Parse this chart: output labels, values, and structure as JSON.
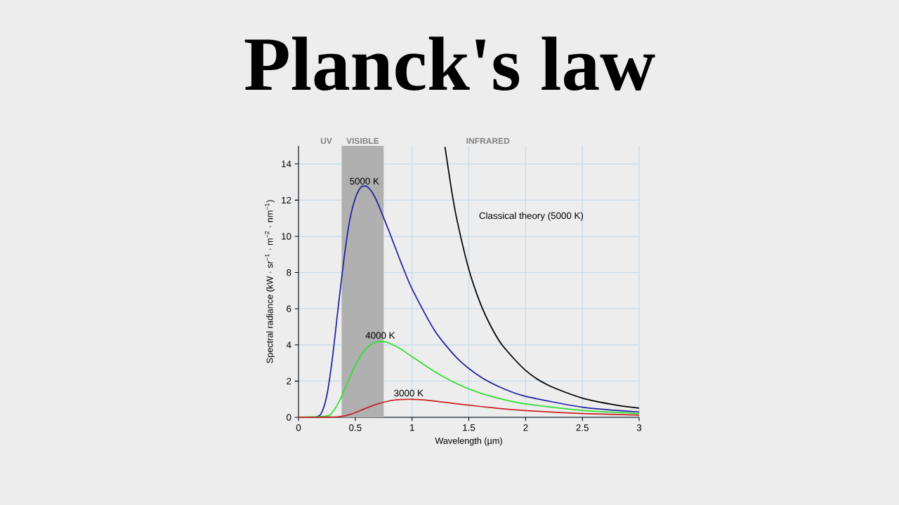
{
  "chart_data": {
    "type": "line",
    "title": "Planck's law",
    "xlabel": "Wavelength (µm)",
    "ylabel": "Spectral radiance (kW · sr$^{−1}$ · m$^{−2}$ · nm$^{−1}$)",
    "xlim": [
      0,
      3
    ],
    "ylim": [
      0,
      15
    ],
    "xticks": [
      0,
      0.5,
      1,
      1.5,
      2,
      2.5,
      3
    ],
    "yticks": [
      0,
      2,
      4,
      6,
      8,
      10,
      12,
      14
    ],
    "grid": true,
    "bands": [
      {
        "axis": "x",
        "from": 0.38,
        "to": 0.75,
        "label": "VISIBLE",
        "color": "#b0b0b0"
      }
    ],
    "annotations": [
      {
        "text": "5000 K",
        "x": 0.58,
        "y": 12.7
      },
      {
        "text": "4000 K",
        "x": 0.72,
        "y": 4.18
      },
      {
        "text": "3000 K",
        "x": 0.97,
        "y": 0.99
      },
      "UV",
      "INFRARED",
      "Classical theory (5000 K)"
    ],
    "series": [
      {
        "color": "#1f1f9e",
        "x": [
          0,
          0.1,
          0.15,
          0.2,
          0.25,
          0.3,
          0.35,
          0.4,
          0.45,
          0.5,
          0.55,
          0.6,
          0.65,
          0.7,
          0.8,
          0.9,
          1.0,
          1.2,
          1.4,
          1.6,
          1.8,
          2.0,
          2.5,
          3.0
        ],
        "values": [
          0,
          0,
          0.01,
          0.21,
          1.22,
          3.34,
          6.1,
          8.73,
          10.85,
          12.1,
          12.72,
          12.76,
          12.42,
          11.8,
          10.24,
          8.6,
          7.1,
          4.79,
          3.25,
          2.25,
          1.6,
          1.16,
          0.56,
          0.3
        ]
      },
      {
        "color": "#2ee02e",
        "x": [
          0,
          0.25,
          0.3,
          0.35,
          0.4,
          0.45,
          0.5,
          0.55,
          0.6,
          0.65,
          0.7,
          0.75,
          0.8,
          0.9,
          1.0,
          1.2,
          1.4,
          1.6,
          1.8,
          2.0,
          2.5,
          3.0
        ],
        "values": [
          0,
          0.07,
          0.3,
          0.78,
          1.45,
          2.19,
          2.87,
          3.43,
          3.83,
          4.07,
          4.18,
          4.18,
          4.1,
          3.78,
          3.35,
          2.52,
          1.84,
          1.34,
          0.99,
          0.74,
          0.38,
          0.21
        ]
      },
      {
        "color": "#c82020",
        "x": [
          0,
          0.3,
          0.35,
          0.4,
          0.45,
          0.5,
          0.6,
          0.7,
          0.8,
          0.9,
          1.0,
          1.1,
          1.2,
          1.4,
          1.6,
          1.8,
          2.0,
          2.5,
          3.0
        ],
        "values": [
          0,
          0.01,
          0.03,
          0.07,
          0.15,
          0.26,
          0.52,
          0.75,
          0.91,
          0.98,
          0.99,
          0.96,
          0.9,
          0.74,
          0.6,
          0.47,
          0.37,
          0.21,
          0.12
        ]
      },
      {
        "color": "#000000",
        "x": [
          1.29,
          1.35,
          1.4,
          1.5,
          1.6,
          1.7,
          1.8,
          2.0,
          2.2,
          2.5,
          2.8,
          3.0
        ],
        "values": [
          14.95,
          12.47,
          10.78,
          8.18,
          6.32,
          4.96,
          3.94,
          2.59,
          1.77,
          1.06,
          0.67,
          0.51
        ]
      }
    ]
  }
}
